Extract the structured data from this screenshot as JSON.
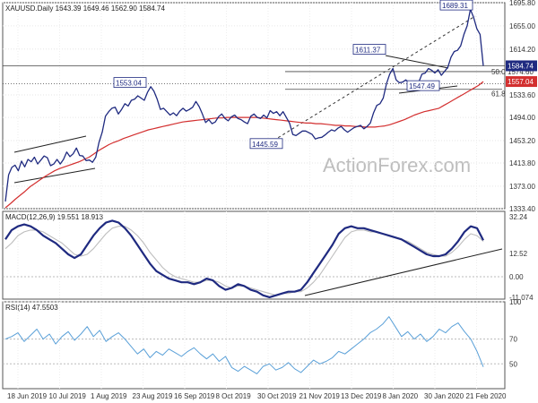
{
  "main": {
    "header": "XAUUSD.Daily 1643.39 1649.46 1562.90 1584.74",
    "watermark": "ActionForex.com",
    "y_ticks": [
      "1695.80",
      "1655.00",
      "1614.20",
      "1533.60",
      "1494.00",
      "1453.20",
      "1413.80",
      "1373.00",
      "1333.40"
    ],
    "last_price": "1584.74",
    "ma_value": "1557.04",
    "ma_color": "#d32f2f",
    "price_color": "#1f2a80",
    "fib_labels": [
      {
        "text": "50.0",
        "price": 1574.6
      },
      {
        "text": "61.8",
        "price": 1543.4
      },
      {
        "text": "1574.60",
        "price": 1574.6
      }
    ],
    "annotations": [
      "1553.04",
      "1611.37",
      "1689.31",
      "1547.49",
      "1445.59"
    ]
  },
  "macd": {
    "header": "MACD(12,26,9) 19.551 18.913",
    "y_ticks": [
      "32.24",
      "12.52",
      "0.00",
      "-11.074"
    ]
  },
  "rsi": {
    "header": "RSI(14) 47.5503",
    "y_ticks": [
      "100",
      "70",
      "50"
    ]
  },
  "x_ticks": [
    "18 Jun 2019",
    "10 Jul 2019",
    "1 Aug 2019",
    "23 Aug 2019",
    "16 Sep 2019",
    "8 Oct 2019",
    "30 Oct 2019",
    "21 Nov 2019",
    "13 Dec 2019",
    "8 Jan 2020",
    "30 Jan 2020",
    "21 Feb 2020"
  ],
  "chart_data": [
    {
      "type": "line",
      "title": "XAUUSD.Daily",
      "series": [
        {
          "name": "XAUUSD",
          "values": [
            1346,
            1393,
            1406,
            1410,
            1400,
            1417,
            1407,
            1420,
            1416,
            1424,
            1412,
            1419,
            1426,
            1423,
            1409,
            1412,
            1420,
            1412,
            1420,
            1433,
            1425,
            1430,
            1440,
            1427,
            1426,
            1418,
            1419,
            1415,
            1424,
            1450,
            1468,
            1496,
            1504,
            1510,
            1512,
            1500,
            1508,
            1518,
            1514,
            1524,
            1526,
            1532,
            1528,
            1524,
            1538,
            1548,
            1540,
            1526,
            1508,
            1510,
            1504,
            1498,
            1502,
            1497,
            1505,
            1510,
            1505,
            1508,
            1512,
            1522,
            1513,
            1500,
            1485,
            1490,
            1483,
            1486,
            1495,
            1500,
            1492,
            1488,
            1495,
            1498,
            1492,
            1490,
            1486,
            1483,
            1496,
            1500,
            1494,
            1492,
            1498,
            1493,
            1506,
            1501,
            1504,
            1497,
            1504,
            1494,
            1484,
            1464,
            1462,
            1466,
            1470,
            1470,
            1467,
            1464,
            1456,
            1458,
            1459,
            1463,
            1468,
            1472,
            1470,
            1475,
            1478,
            1472,
            1468,
            1472,
            1476,
            1478,
            1480,
            1474,
            1478,
            1484,
            1502,
            1515,
            1518,
            1528,
            1553,
            1570,
            1580,
            1560,
            1555,
            1556,
            1560,
            1555,
            1552,
            1550,
            1556,
            1570,
            1572,
            1580,
            1577,
            1572,
            1578,
            1568,
            1575,
            1582,
            1600,
            1610,
            1612,
            1620,
            1640,
            1655,
            1684,
            1670,
            1650,
            1640,
            1584.74
          ]
        },
        {
          "name": "MA",
          "values": [
            1335,
            1342,
            1350,
            1357,
            1364,
            1372,
            1378,
            1384,
            1390,
            1395,
            1400,
            1404,
            1407,
            1410,
            1413,
            1416,
            1420,
            1424,
            1430,
            1436,
            1441,
            1446,
            1450,
            1453,
            1457,
            1460,
            1463,
            1466,
            1469,
            1472,
            1474,
            1476,
            1478,
            1480,
            1482,
            1484,
            1486,
            1487,
            1488,
            1489,
            1490,
            1491,
            1492,
            1493,
            1493,
            1494,
            1494,
            1494,
            1494,
            1494,
            1494,
            1494,
            1493,
            1492,
            1491,
            1490,
            1489,
            1488,
            1487,
            1486,
            1485,
            1484,
            1484,
            1483,
            1483,
            1482,
            1481,
            1480,
            1480,
            1479,
            1479,
            1478,
            1478,
            1477,
            1477,
            1477,
            1478,
            1479,
            1481,
            1484,
            1487,
            1490,
            1494,
            1498,
            1501,
            1504,
            1506,
            1508,
            1510,
            1515,
            1520,
            1525,
            1530,
            1535,
            1540,
            1545,
            1550,
            1557.04
          ]
        }
      ],
      "ylim": [
        1333.4,
        1695.8
      ]
    },
    {
      "type": "line",
      "title": "MACD(12,26,9)",
      "series": [
        {
          "name": "MACD",
          "values": [
            20,
            25,
            27,
            28,
            27,
            25,
            22,
            20,
            18,
            15,
            12,
            10,
            12,
            17,
            22,
            26,
            29,
            30,
            29,
            26,
            22,
            17,
            12,
            7,
            3,
            1,
            -1,
            -2,
            -3,
            -3,
            -4,
            -3,
            -1,
            -2,
            -5,
            -7,
            -6,
            -4,
            -5,
            -7,
            -8,
            -10,
            -11,
            -10,
            -9,
            -8,
            -8,
            -7,
            -3,
            2,
            7,
            12,
            17,
            23,
            26,
            27,
            26,
            26,
            25,
            24,
            23,
            22,
            21,
            20,
            18,
            16,
            14,
            12,
            11,
            11,
            12,
            15,
            19,
            24,
            27,
            26,
            19.551
          ]
        },
        {
          "name": "Signal",
          "values": [
            15,
            18,
            22,
            24,
            25,
            25,
            24,
            22,
            20,
            18,
            15,
            12,
            11,
            12,
            15,
            19,
            23,
            26,
            27,
            27,
            25,
            22,
            18,
            13,
            9,
            5,
            2,
            0,
            -1,
            -2,
            -3,
            -3,
            -2,
            -2,
            -3,
            -5,
            -6,
            -5,
            -5,
            -6,
            -7,
            -8,
            -9,
            -10,
            -9,
            -9,
            -8,
            -8,
            -6,
            -3,
            1,
            6,
            11,
            16,
            21,
            24,
            25,
            25,
            24,
            24,
            23,
            22,
            21,
            20,
            19,
            17,
            15,
            13,
            12,
            11,
            11,
            13,
            16,
            20,
            23,
            22,
            18.913
          ]
        }
      ],
      "ylim": [
        -12,
        35
      ]
    },
    {
      "type": "line",
      "title": "RSI(14)",
      "series": [
        {
          "name": "RSI",
          "values": [
            70,
            72,
            75,
            68,
            73,
            78,
            70,
            74,
            66,
            72,
            76,
            69,
            74,
            80,
            72,
            77,
            68,
            72,
            75,
            70,
            64,
            58,
            62,
            55,
            60,
            57,
            62,
            59,
            56,
            60,
            63,
            58,
            54,
            58,
            52,
            56,
            47,
            44,
            48,
            45,
            42,
            48,
            50,
            45,
            47,
            51,
            46,
            43,
            48,
            53,
            50,
            52,
            55,
            60,
            58,
            62,
            66,
            70,
            75,
            78,
            82,
            88,
            80,
            72,
            76,
            70,
            74,
            68,
            72,
            78,
            75,
            80,
            83,
            76,
            70,
            60,
            47.55
          ]
        }
      ],
      "ylim": [
        30,
        100
      ]
    }
  ]
}
